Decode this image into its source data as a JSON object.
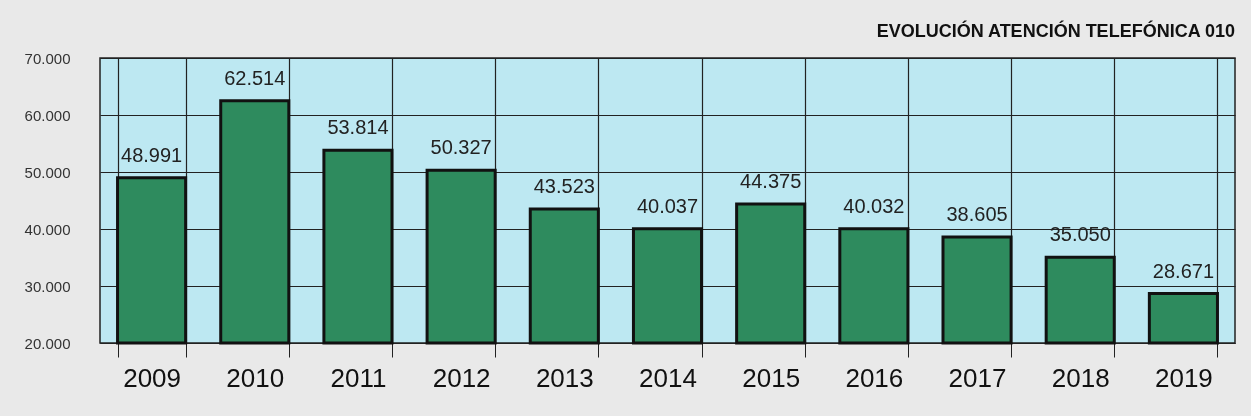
{
  "chart_data": {
    "type": "bar",
    "title": "EVOLUCIÓN ATENCIÓN TELEFÓNICA 010",
    "categories": [
      "2009",
      "2010",
      "2011",
      "2012",
      "2013",
      "2014",
      "2015",
      "2016",
      "2017",
      "2018",
      "2019"
    ],
    "values": [
      48991,
      62514,
      53814,
      50327,
      43523,
      40037,
      44375,
      40032,
      38605,
      35050,
      28671
    ],
    "value_labels": [
      "48.991",
      "62.514",
      "53.814",
      "50.327",
      "43.523",
      "40.037",
      "44.375",
      "40.032",
      "38.605",
      "35.050",
      "28.671"
    ],
    "color": "#2e8b5e",
    "ylim": [
      20000,
      70000
    ],
    "yticks": [
      {
        "value": 20000,
        "label": "20.000"
      },
      {
        "value": 30000,
        "label": "30.000"
      },
      {
        "value": 40000,
        "label": "40.000"
      },
      {
        "value": 50000,
        "label": "50.000"
      },
      {
        "value": 60000,
        "label": "60.000"
      },
      {
        "value": 70000,
        "label": "70.000"
      }
    ],
    "grid": true
  }
}
